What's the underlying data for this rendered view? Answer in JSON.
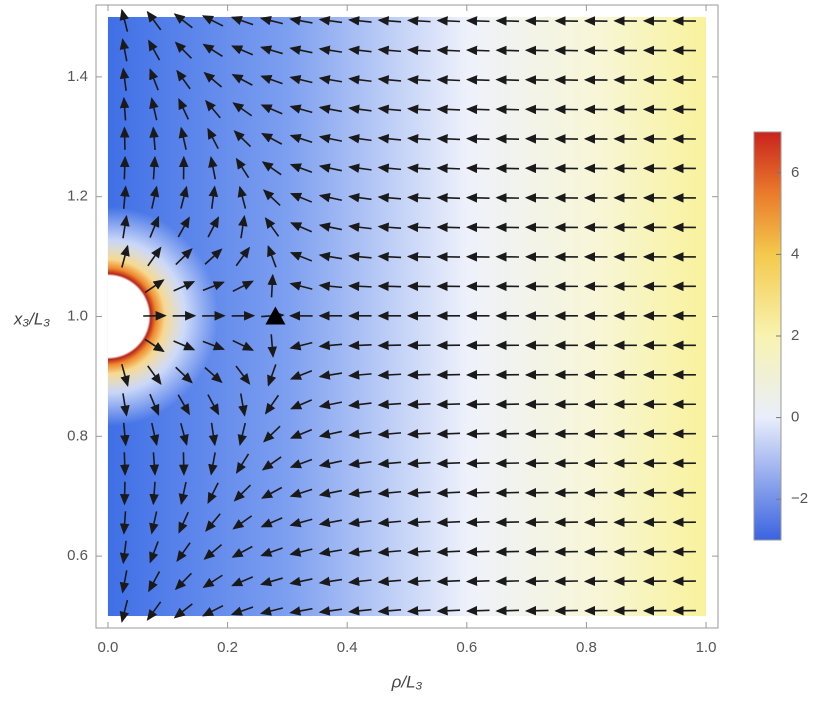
{
  "chart_data": {
    "type": "vector-density",
    "x_label": "ρ/L₃",
    "y_label": "x₃/L₃",
    "xlim": [
      -0.02,
      1.02
    ],
    "ylim": [
      0.48,
      1.52
    ],
    "xticks": [
      {
        "value": 0,
        "label": "0.0"
      },
      0.2,
      0.4,
      0.6,
      0.8,
      {
        "value": 1,
        "label": "1.0"
      }
    ],
    "yticks": [
      0.6,
      0.8,
      {
        "value": 1,
        "label": "1.0"
      },
      1.2,
      1.4
    ],
    "marker": {
      "x": 0.28,
      "y": 1.0,
      "color": "#000000"
    },
    "colorbar": {
      "clim": [
        -3,
        7
      ],
      "ticks": [
        {
          "value": -2,
          "label": "−2"
        },
        0,
        2,
        4,
        6
      ]
    }
  }
}
